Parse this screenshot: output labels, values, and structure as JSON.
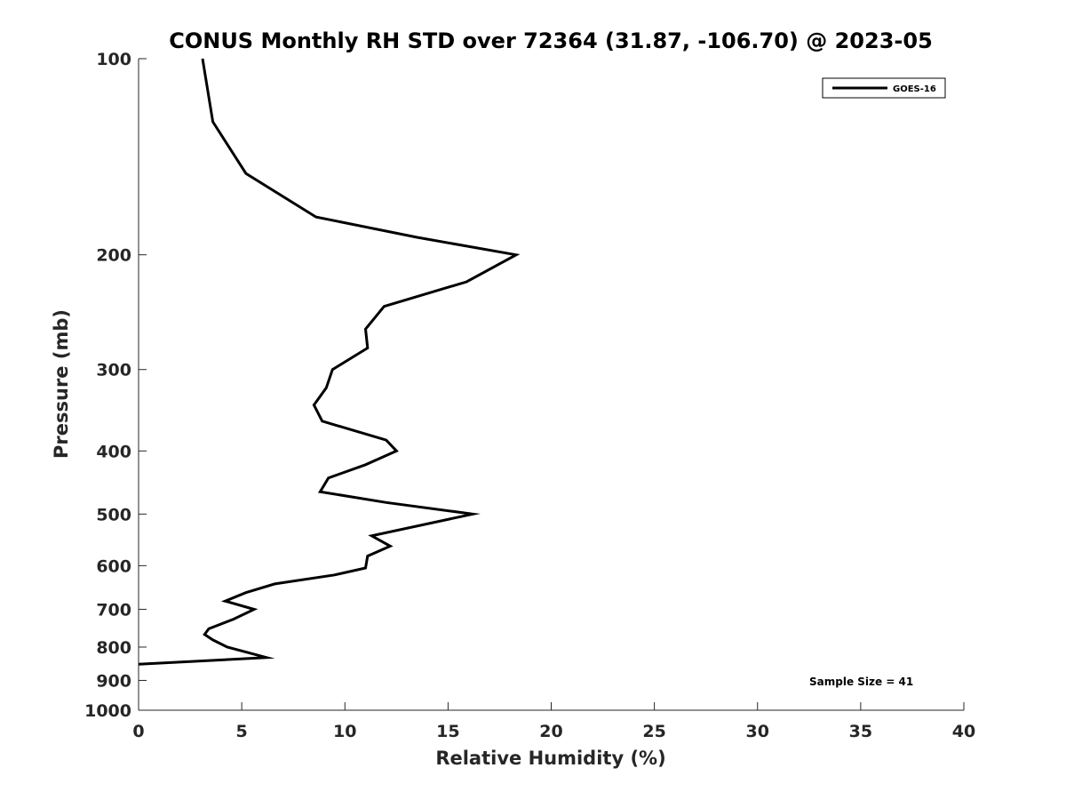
{
  "chart_data": {
    "type": "line",
    "title": "CONUS Monthly RH STD over 72364 (31.87, -106.70) @ 2023-05",
    "xlabel": "Relative Humidity (%)",
    "ylabel": "Pressure (mb)",
    "xlim": [
      0,
      40
    ],
    "ylim": [
      100,
      1000
    ],
    "y_scale": "log",
    "y_reversed": true,
    "x_ticks": [
      "0",
      "5",
      "10",
      "15",
      "20",
      "25",
      "30",
      "35",
      "40"
    ],
    "y_ticks": [
      "100",
      "200",
      "300",
      "400",
      "500",
      "600",
      "700",
      "800",
      "900",
      "1000"
    ],
    "grid": false,
    "legend_position": "top-right",
    "series": [
      {
        "name": "GOES-16",
        "color": "#000000",
        "points": [
          [
            3.1,
            100
          ],
          [
            3.6,
            125
          ],
          [
            5.2,
            150
          ],
          [
            8.6,
            175
          ],
          [
            13.5,
            188
          ],
          [
            18.3,
            200
          ],
          [
            15.9,
            220
          ],
          [
            11.9,
            240
          ],
          [
            11.0,
            260
          ],
          [
            11.1,
            278
          ],
          [
            9.4,
            300
          ],
          [
            9.1,
            320
          ],
          [
            8.5,
            340
          ],
          [
            8.9,
            360
          ],
          [
            12.0,
            385
          ],
          [
            12.5,
            400
          ],
          [
            11.0,
            420
          ],
          [
            9.2,
            440
          ],
          [
            8.8,
            462
          ],
          [
            12.0,
            480
          ],
          [
            16.2,
            500
          ],
          [
            11.3,
            540
          ],
          [
            12.2,
            560
          ],
          [
            11.1,
            580
          ],
          [
            11.0,
            605
          ],
          [
            9.5,
            620
          ],
          [
            6.6,
            640
          ],
          [
            5.2,
            660
          ],
          [
            4.2,
            680
          ],
          [
            5.6,
            700
          ],
          [
            4.6,
            725
          ],
          [
            3.4,
            750
          ],
          [
            3.2,
            765
          ],
          [
            3.6,
            780
          ],
          [
            4.3,
            800
          ],
          [
            6.2,
            830
          ],
          [
            0.0,
            850
          ]
        ]
      }
    ],
    "annotation": "Sample Size = 41"
  }
}
